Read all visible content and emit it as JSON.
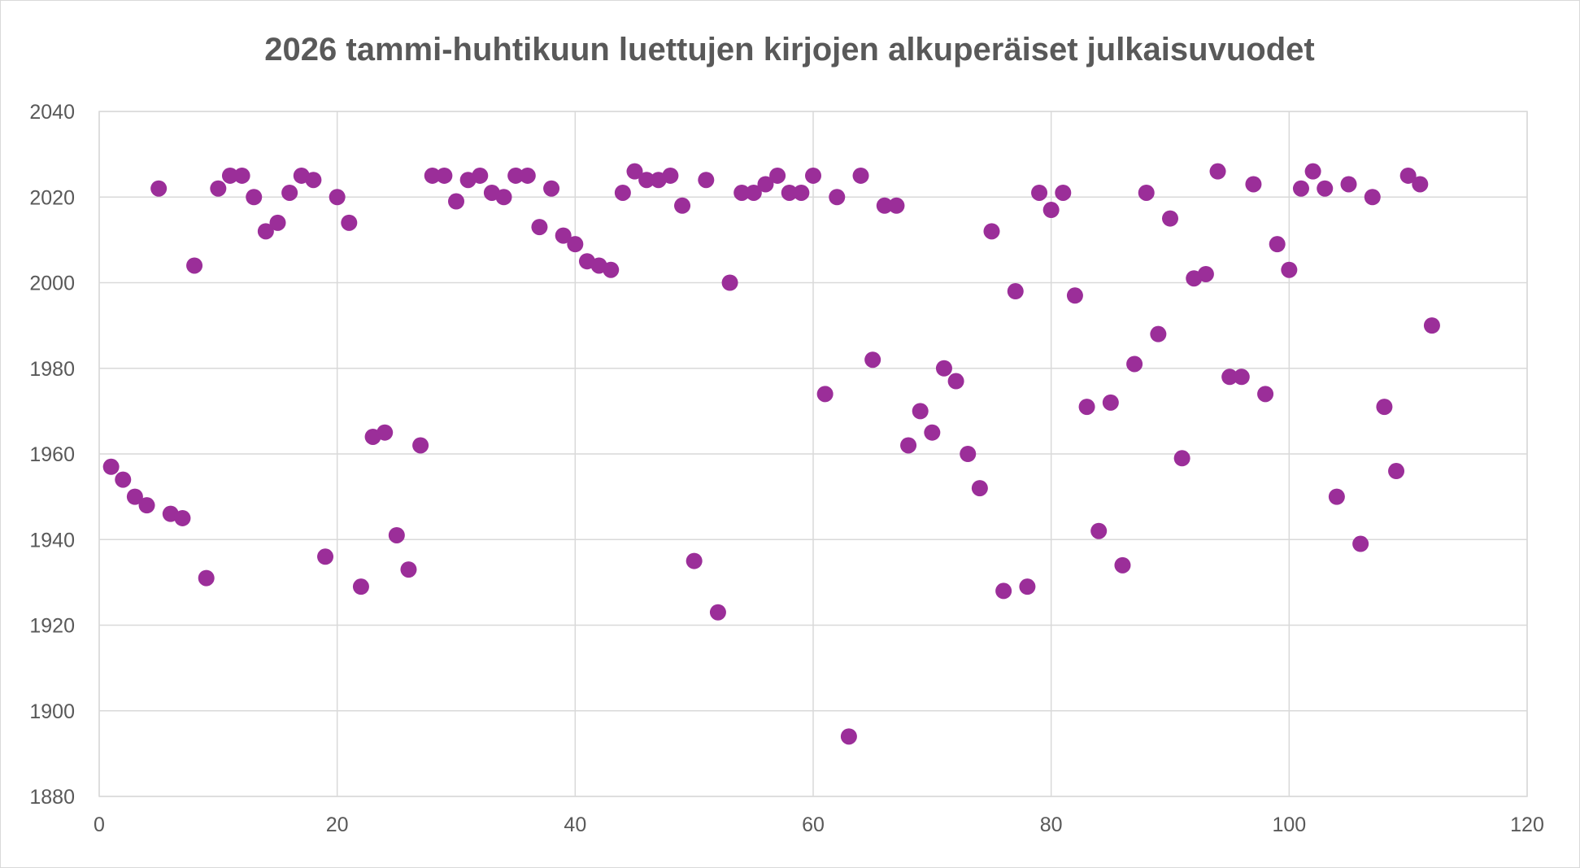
{
  "chart_data": {
    "type": "scatter",
    "title": "2026 tammi-huhtikuun luettujen kirjojen alkuperäiset julkaisuvuodet",
    "xlabel": "",
    "ylabel": "",
    "xlim": [
      0,
      120
    ],
    "ylim": [
      1880,
      2040
    ],
    "x_ticks": [
      "0",
      "20",
      "40",
      "60",
      "80",
      "100",
      "120"
    ],
    "y_ticks": [
      "1880",
      "1900",
      "1920",
      "1940",
      "1960",
      "1980",
      "2000",
      "2020",
      "2040"
    ],
    "grid": true,
    "legend": "none",
    "marker_color": "#9b2e99",
    "series": [
      {
        "points": [
          [
            1,
            1957
          ],
          [
            2,
            1954
          ],
          [
            3,
            1950
          ],
          [
            4,
            1948
          ],
          [
            5,
            2022
          ],
          [
            6,
            1946
          ],
          [
            7,
            1945
          ],
          [
            8,
            2004
          ],
          [
            9,
            1931
          ],
          [
            10,
            2022
          ],
          [
            11,
            2025
          ],
          [
            12,
            2025
          ],
          [
            13,
            2020
          ],
          [
            14,
            2012
          ],
          [
            15,
            2014
          ],
          [
            16,
            2021
          ],
          [
            17,
            2025
          ],
          [
            18,
            2024
          ],
          [
            19,
            1936
          ],
          [
            20,
            2020
          ],
          [
            21,
            2014
          ],
          [
            22,
            1929
          ],
          [
            23,
            1964
          ],
          [
            24,
            1965
          ],
          [
            25,
            1941
          ],
          [
            26,
            1933
          ],
          [
            27,
            1962
          ],
          [
            28,
            2025
          ],
          [
            29,
            2025
          ],
          [
            30,
            2019
          ],
          [
            31,
            2024
          ],
          [
            32,
            2025
          ],
          [
            33,
            2021
          ],
          [
            34,
            2020
          ],
          [
            35,
            2025
          ],
          [
            36,
            2025
          ],
          [
            37,
            2013
          ],
          [
            38,
            2022
          ],
          [
            39,
            2011
          ],
          [
            40,
            2009
          ],
          [
            41,
            2005
          ],
          [
            42,
            2004
          ],
          [
            43,
            2003
          ],
          [
            44,
            2021
          ],
          [
            45,
            2026
          ],
          [
            46,
            2024
          ],
          [
            47,
            2024
          ],
          [
            48,
            2025
          ],
          [
            49,
            2018
          ],
          [
            50,
            1935
          ],
          [
            51,
            2024
          ],
          [
            52,
            1923
          ],
          [
            53,
            2000
          ],
          [
            54,
            2021
          ],
          [
            55,
            2021
          ],
          [
            56,
            2023
          ],
          [
            57,
            2025
          ],
          [
            58,
            2021
          ],
          [
            59,
            2021
          ],
          [
            60,
            2025
          ],
          [
            61,
            1974
          ],
          [
            62,
            2020
          ],
          [
            63,
            1894
          ],
          [
            64,
            2025
          ],
          [
            65,
            1982
          ],
          [
            66,
            2018
          ],
          [
            67,
            2018
          ],
          [
            68,
            1962
          ],
          [
            69,
            1970
          ],
          [
            70,
            1965
          ],
          [
            71,
            1980
          ],
          [
            72,
            1977
          ],
          [
            73,
            1960
          ],
          [
            74,
            1952
          ],
          [
            75,
            2012
          ],
          [
            76,
            1928
          ],
          [
            77,
            1998
          ],
          [
            78,
            1929
          ],
          [
            79,
            2021
          ],
          [
            80,
            2017
          ],
          [
            81,
            2021
          ],
          [
            82,
            1997
          ],
          [
            83,
            1971
          ],
          [
            84,
            1942
          ],
          [
            85,
            1972
          ],
          [
            86,
            1934
          ],
          [
            87,
            1981
          ],
          [
            88,
            2021
          ],
          [
            89,
            1988
          ],
          [
            90,
            2015
          ],
          [
            91,
            1959
          ],
          [
            92,
            2001
          ],
          [
            93,
            2002
          ],
          [
            94,
            2026
          ],
          [
            95,
            1978
          ],
          [
            96,
            1978
          ],
          [
            97,
            2023
          ],
          [
            98,
            1974
          ],
          [
            99,
            2009
          ],
          [
            100,
            2003
          ],
          [
            101,
            2022
          ],
          [
            102,
            2026
          ],
          [
            103,
            2022
          ],
          [
            104,
            1950
          ],
          [
            105,
            2023
          ],
          [
            106,
            1939
          ],
          [
            107,
            2020
          ],
          [
            108,
            1971
          ],
          [
            109,
            1956
          ],
          [
            110,
            2025
          ],
          [
            111,
            2023
          ],
          [
            112,
            1990
          ]
        ]
      }
    ]
  }
}
